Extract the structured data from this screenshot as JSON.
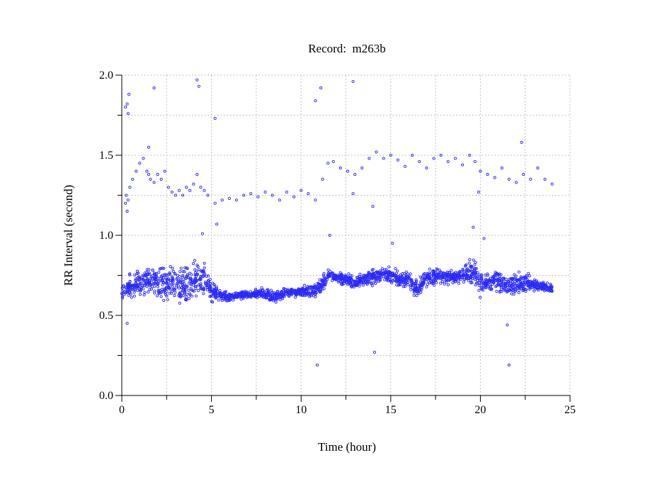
{
  "chart_data": {
    "type": "scatter",
    "title": "Record:  m263b",
    "xlabel": "Time (hour)",
    "ylabel": "RR Interval (second)",
    "xlim": [
      0,
      25
    ],
    "ylim": [
      0,
      2.0
    ],
    "x_ticks": [
      "0",
      "5",
      "10",
      "15",
      "20",
      "25"
    ],
    "y_ticks": [
      "0.0",
      "0.5",
      "1.0",
      "1.5",
      "2.0"
    ],
    "grid": true,
    "marker_color": "#2a2aff",
    "main_band": {
      "x": [
        0,
        0.5,
        1,
        1.5,
        2,
        2.5,
        3,
        3.5,
        4,
        4.5,
        5,
        5.5,
        6,
        6.5,
        7,
        7.5,
        8,
        8.5,
        9,
        9.5,
        10,
        10.5,
        11,
        11.5,
        12,
        12.5,
        13,
        13.5,
        14,
        14.5,
        15,
        15.5,
        16,
        16.5,
        17,
        17.5,
        18,
        18.5,
        19,
        19.5,
        20,
        20.5,
        21,
        21.5,
        22,
        22.5,
        23,
        23.5,
        24
      ],
      "low": [
        0.58,
        0.6,
        0.6,
        0.62,
        0.6,
        0.56,
        0.54,
        0.55,
        0.56,
        0.58,
        0.55,
        0.58,
        0.58,
        0.59,
        0.6,
        0.6,
        0.59,
        0.57,
        0.6,
        0.61,
        0.6,
        0.6,
        0.6,
        0.69,
        0.69,
        0.67,
        0.66,
        0.67,
        0.68,
        0.7,
        0.68,
        0.66,
        0.64,
        0.58,
        0.66,
        0.68,
        0.68,
        0.68,
        0.68,
        0.66,
        0.6,
        0.62,
        0.62,
        0.6,
        0.62,
        0.62,
        0.64,
        0.64,
        0.64
      ],
      "high": [
        0.7,
        0.78,
        0.8,
        0.82,
        0.82,
        0.82,
        0.84,
        0.82,
        0.86,
        0.88,
        0.75,
        0.67,
        0.65,
        0.66,
        0.66,
        0.67,
        0.68,
        0.66,
        0.68,
        0.68,
        0.69,
        0.7,
        0.74,
        0.8,
        0.78,
        0.77,
        0.76,
        0.78,
        0.8,
        0.8,
        0.82,
        0.8,
        0.8,
        0.76,
        0.8,
        0.82,
        0.8,
        0.8,
        0.82,
        0.9,
        0.82,
        0.78,
        0.8,
        0.76,
        0.78,
        0.8,
        0.74,
        0.72,
        0.7
      ]
    },
    "upper_cluster": [
      [
        0.2,
        1.2
      ],
      [
        0.25,
        1.25
      ],
      [
        0.3,
        1.15
      ],
      [
        0.35,
        1.22
      ],
      [
        0.45,
        1.3
      ],
      [
        0.6,
        1.35
      ],
      [
        0.8,
        1.4
      ],
      [
        1.0,
        1.45
      ],
      [
        1.2,
        1.48
      ],
      [
        1.4,
        1.4
      ],
      [
        1.5,
        1.38
      ],
      [
        1.6,
        1.35
      ],
      [
        1.8,
        1.33
      ],
      [
        2.0,
        1.38
      ],
      [
        2.2,
        1.35
      ],
      [
        2.4,
        1.4
      ],
      [
        2.6,
        1.3
      ],
      [
        2.8,
        1.27
      ],
      [
        3.0,
        1.25
      ],
      [
        3.2,
        1.28
      ],
      [
        3.4,
        1.25
      ],
      [
        3.6,
        1.3
      ],
      [
        3.8,
        1.28
      ],
      [
        4.0,
        1.32
      ],
      [
        4.2,
        1.38
      ],
      [
        4.4,
        1.3
      ],
      [
        4.6,
        1.28
      ],
      [
        4.8,
        1.25
      ],
      [
        5.2,
        1.2
      ],
      [
        5.6,
        1.22
      ],
      [
        6.0,
        1.23
      ],
      [
        6.4,
        1.22
      ],
      [
        6.8,
        1.25
      ],
      [
        7.2,
        1.26
      ],
      [
        7.6,
        1.24
      ],
      [
        8.0,
        1.27
      ],
      [
        8.4,
        1.25
      ],
      [
        8.8,
        1.22
      ],
      [
        9.2,
        1.27
      ],
      [
        9.6,
        1.24
      ],
      [
        10.0,
        1.28
      ],
      [
        10.4,
        1.26
      ],
      [
        10.8,
        1.22
      ],
      [
        11.2,
        1.35
      ],
      [
        11.5,
        1.45
      ],
      [
        11.8,
        1.46
      ],
      [
        12.2,
        1.42
      ],
      [
        12.6,
        1.4
      ],
      [
        13.0,
        1.38
      ],
      [
        13.4,
        1.42
      ],
      [
        13.8,
        1.48
      ],
      [
        14.2,
        1.52
      ],
      [
        14.6,
        1.48
      ],
      [
        15.0,
        1.5
      ],
      [
        15.4,
        1.47
      ],
      [
        15.8,
        1.43
      ],
      [
        16.2,
        1.5
      ],
      [
        16.6,
        1.46
      ],
      [
        17.0,
        1.42
      ],
      [
        17.4,
        1.48
      ],
      [
        17.8,
        1.5
      ],
      [
        18.2,
        1.46
      ],
      [
        18.6,
        1.48
      ],
      [
        19.0,
        1.44
      ],
      [
        19.4,
        1.5
      ],
      [
        19.7,
        1.46
      ],
      [
        20.0,
        1.4
      ],
      [
        20.4,
        1.38
      ],
      [
        20.8,
        1.36
      ],
      [
        21.2,
        1.42
      ],
      [
        21.6,
        1.35
      ],
      [
        22.0,
        1.33
      ],
      [
        22.4,
        1.38
      ],
      [
        22.8,
        1.35
      ],
      [
        23.2,
        1.42
      ],
      [
        23.6,
        1.35
      ],
      [
        24.0,
        1.32
      ]
    ],
    "outliers": [
      [
        0.2,
        1.8
      ],
      [
        0.3,
        1.82
      ],
      [
        0.4,
        1.88
      ],
      [
        0.35,
        1.76
      ],
      [
        1.8,
        1.92
      ],
      [
        4.2,
        1.97
      ],
      [
        4.3,
        1.93
      ],
      [
        5.2,
        1.73
      ],
      [
        10.8,
        1.84
      ],
      [
        11.1,
        1.92
      ],
      [
        12.9,
        1.96
      ],
      [
        10.9,
        0.19
      ],
      [
        14.1,
        0.27
      ],
      [
        21.6,
        0.19
      ],
      [
        21.5,
        0.44
      ],
      [
        0.3,
        0.45
      ],
      [
        4.5,
        1.01
      ],
      [
        11.6,
        1.0
      ],
      [
        19.6,
        1.05
      ],
      [
        20.2,
        0.98
      ],
      [
        15.1,
        0.95
      ],
      [
        5.3,
        1.07
      ],
      [
        14.0,
        1.18
      ],
      [
        12.9,
        1.26
      ],
      [
        19.9,
        1.27
      ],
      [
        22.3,
        1.58
      ],
      [
        1.5,
        1.55
      ]
    ]
  }
}
